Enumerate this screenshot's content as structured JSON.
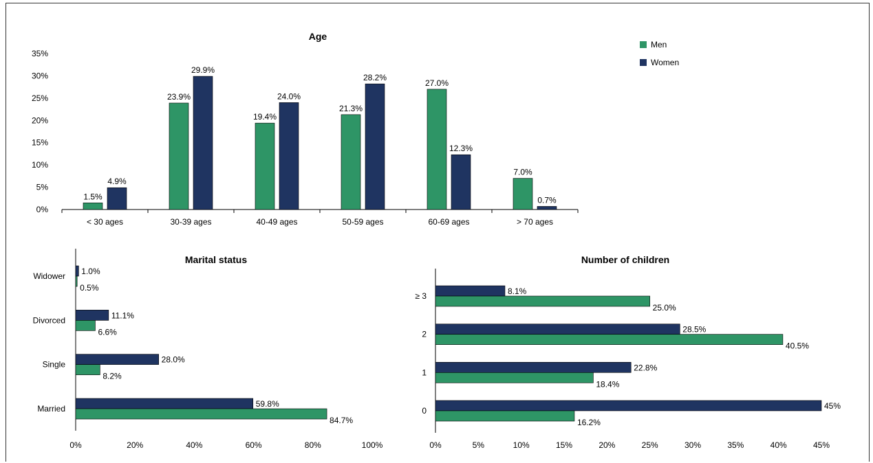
{
  "colors": {
    "men": "#2e9566",
    "women": "#1f3461",
    "axis": "#000000"
  },
  "legend": {
    "men": "Men",
    "women": "Women"
  },
  "chart_data": [
    {
      "type": "bar",
      "title": "Age",
      "categories": [
        "< 30 ages",
        "30-39 ages",
        "40-49 ages",
        "50-59 ages",
        "60-69 ages",
        "> 70 ages"
      ],
      "series": [
        {
          "name": "Men",
          "values": [
            1.5,
            23.9,
            19.4,
            21.3,
            27.0,
            7.0
          ],
          "labels": [
            "1.5%",
            "23.9%",
            "19.4%",
            "21.3%",
            "27.0%",
            "7.0%"
          ]
        },
        {
          "name": "Women",
          "values": [
            4.9,
            29.9,
            24.0,
            28.2,
            12.3,
            0.7
          ],
          "labels": [
            "4.9%",
            "29.9%",
            "24.0%",
            "28.2%",
            "12.3%",
            "0.7%"
          ]
        }
      ],
      "ylim": [
        0,
        35
      ],
      "yticks": [
        0,
        5,
        10,
        15,
        20,
        25,
        30,
        35
      ],
      "ytick_labels": [
        "0%",
        "5%",
        "10%",
        "15%",
        "20%",
        "25%",
        "30%",
        "35%"
      ],
      "legend_position": "top-right"
    },
    {
      "type": "bar",
      "orientation": "horizontal",
      "title": "Marital status",
      "categories": [
        "Widower",
        "Divorced",
        "Single",
        "Married"
      ],
      "series": [
        {
          "name": "Women",
          "values": [
            1.0,
            11.1,
            28.0,
            59.8
          ],
          "labels": [
            "1.0%",
            "11.1%",
            "28.0%",
            "59.8%"
          ]
        },
        {
          "name": "Men",
          "values": [
            0.5,
            6.6,
            8.2,
            84.7
          ],
          "labels": [
            "0.5%",
            "6.6%",
            "8.2%",
            "84.7%"
          ]
        }
      ],
      "xlim": [
        0,
        100
      ],
      "xticks": [
        0,
        20,
        40,
        60,
        80,
        100
      ],
      "xtick_labels": [
        "0%",
        "20%",
        "40%",
        "60%",
        "80%",
        "100%"
      ]
    },
    {
      "type": "bar",
      "orientation": "horizontal",
      "title": "Number of children",
      "categories": [
        "≥ 3",
        "2",
        "1",
        "0"
      ],
      "series": [
        {
          "name": "Women",
          "values": [
            8.1,
            28.5,
            22.8,
            45
          ],
          "labels": [
            "8.1%",
            "28.5%",
            "22.8%",
            "45%"
          ]
        },
        {
          "name": "Men",
          "values": [
            25.0,
            40.5,
            18.4,
            16.2
          ],
          "labels": [
            "25.0%",
            "40.5%",
            "18.4%",
            "16.2%"
          ]
        }
      ],
      "xlim": [
        0,
        45
      ],
      "xticks": [
        0,
        5,
        10,
        15,
        20,
        25,
        30,
        35,
        40,
        45
      ],
      "xtick_labels": [
        "0%",
        "5%",
        "10%",
        "15%",
        "20%",
        "25%",
        "30%",
        "35%",
        "40%",
        "45%"
      ]
    }
  ]
}
